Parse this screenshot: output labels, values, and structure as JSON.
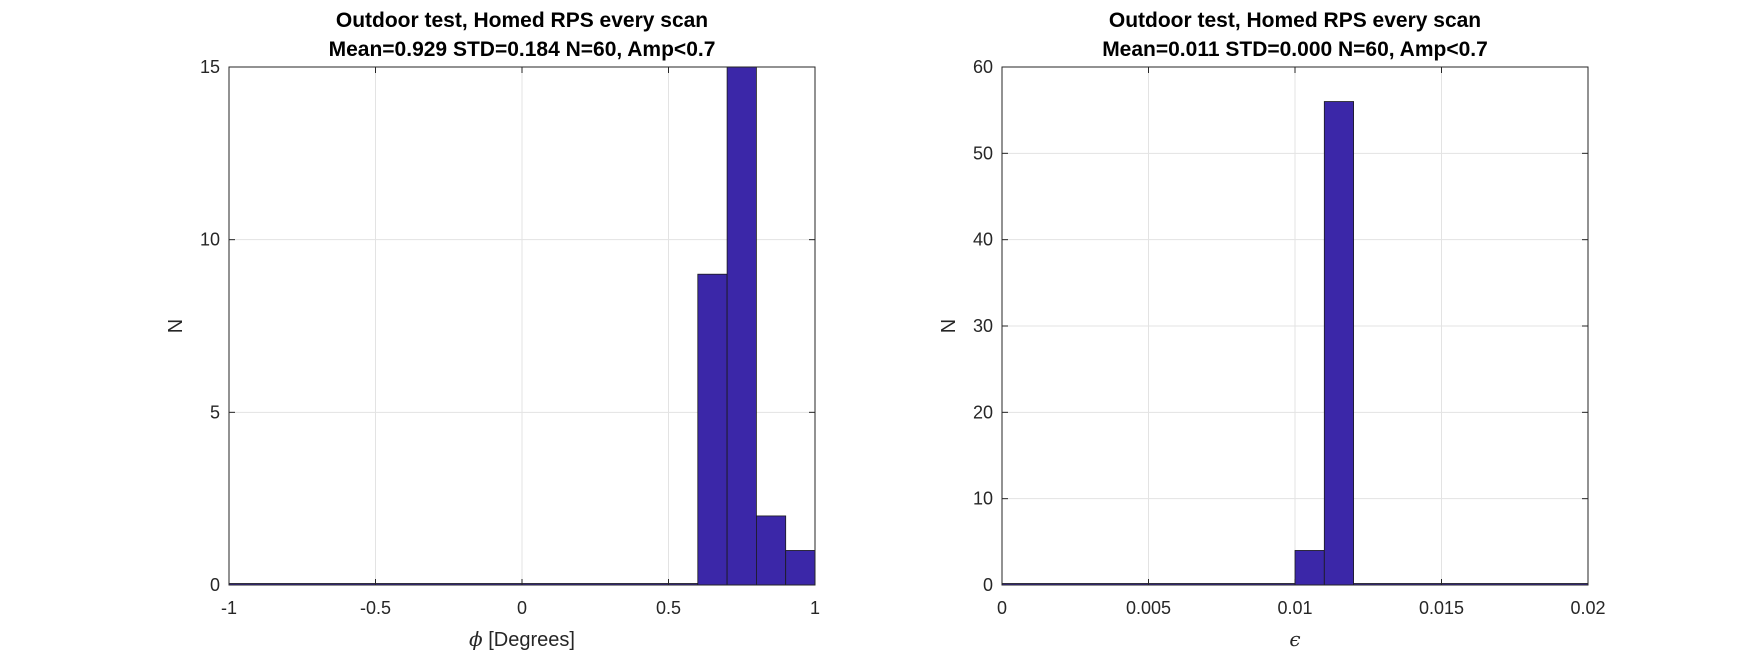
{
  "chart_data": [
    {
      "type": "bar",
      "title": "Outdoor test, Homed RPS every scan",
      "subtitle": "Mean=0.929 STD=0.184 N=60, Amp<0.7",
      "xlabel_symbol": "ϕ",
      "xlabel_text": " [Degrees]",
      "ylabel": "N",
      "xlim": [
        -1,
        1
      ],
      "ylim": [
        0,
        15
      ],
      "xticks": [
        -1,
        -0.5,
        0,
        0.5,
        1
      ],
      "xtick_labels": [
        "-1",
        "-0.5",
        "0",
        "0.5",
        "1"
      ],
      "yticks": [
        0,
        5,
        10,
        15
      ],
      "ytick_labels": [
        "0",
        "5",
        "10",
        "15"
      ],
      "grid": true,
      "bins": [
        {
          "x0": -1.0,
          "x1": 0.6,
          "count": 0
        },
        {
          "x0": 0.6,
          "x1": 0.7,
          "count": 9
        },
        {
          "x0": 0.7,
          "x1": 0.8,
          "count": 15
        },
        {
          "x0": 0.8,
          "x1": 0.9,
          "count": 2
        },
        {
          "x0": 0.9,
          "x1": 1.0,
          "count": 1
        }
      ],
      "bar_color": "#3b27a8"
    },
    {
      "type": "bar",
      "title": "Outdoor test, Homed RPS every scan",
      "subtitle": "Mean=0.011 STD=0.000 N=60, Amp<0.7",
      "xlabel_symbol": "ϵ",
      "xlabel_text": "",
      "ylabel": "N",
      "xlim": [
        0,
        0.02
      ],
      "ylim": [
        0,
        60
      ],
      "xticks": [
        0,
        0.005,
        0.01,
        0.015,
        0.02
      ],
      "xtick_labels": [
        "0",
        "0.005",
        "0.01",
        "0.015",
        "0.02"
      ],
      "yticks": [
        0,
        10,
        20,
        30,
        40,
        50,
        60
      ],
      "ytick_labels": [
        "0",
        "10",
        "20",
        "30",
        "40",
        "50",
        "60"
      ],
      "grid": true,
      "bins": [
        {
          "x0": 0.0,
          "x1": 0.01,
          "count": 0
        },
        {
          "x0": 0.01,
          "x1": 0.011,
          "count": 4
        },
        {
          "x0": 0.011,
          "x1": 0.012,
          "count": 56
        },
        {
          "x0": 0.012,
          "x1": 0.02,
          "count": 0
        }
      ],
      "bar_color": "#3b27a8"
    }
  ]
}
